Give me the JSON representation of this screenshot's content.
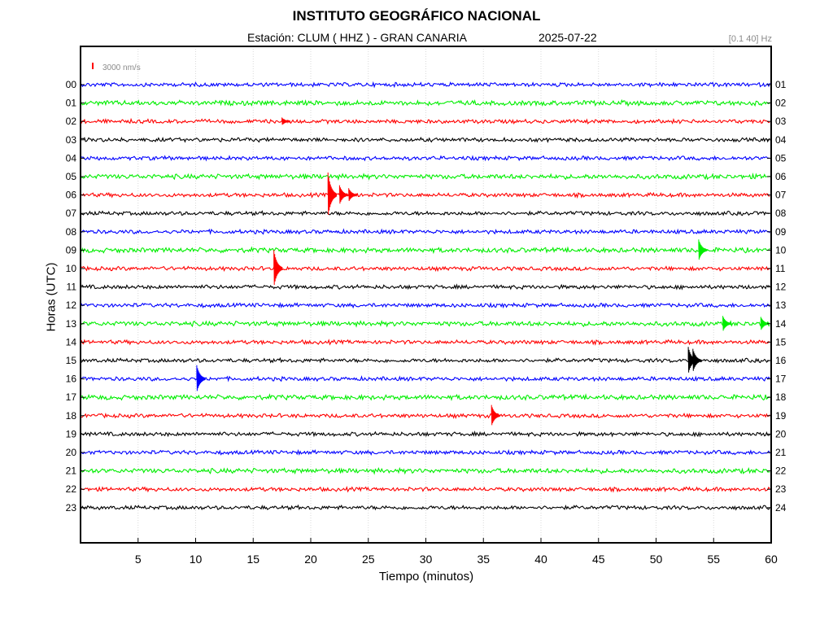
{
  "header": {
    "title": "INSTITUTO GEOGRÁFICO NACIONAL",
    "station": "Estación:  CLUM ( HHZ ) - GRAN CANARIA",
    "date": "2025-07-22",
    "filter": "[0.1 40] Hz"
  },
  "chart_data": {
    "type": "line",
    "title": "INSTITUTO GEOGRÁFICO NACIONAL",
    "xlabel": "Tiempo (minutos)",
    "ylabel": "Horas (UTC)",
    "xlim": [
      0,
      60
    ],
    "x_ticks": [
      "5",
      "10",
      "15",
      "20",
      "25",
      "30",
      "35",
      "40",
      "45",
      "50",
      "55",
      "60"
    ],
    "y_ticks_left": [
      "00",
      "01",
      "02",
      "03",
      "04",
      "05",
      "06",
      "07",
      "08",
      "09",
      "10",
      "11",
      "12",
      "13",
      "14",
      "15",
      "16",
      "17",
      "18",
      "19",
      "20",
      "21",
      "22",
      "23"
    ],
    "y_ticks_right": [
      "01",
      "02",
      "03",
      "04",
      "05",
      "06",
      "07",
      "08",
      "09",
      "10",
      "11",
      "12",
      "13",
      "14",
      "15",
      "16",
      "17",
      "18",
      "19",
      "20",
      "21",
      "22",
      "23",
      "24"
    ],
    "scale_label": "3000 nm/s",
    "grid": true,
    "trace_colors": [
      "#0000ff",
      "#00ee00",
      "#ff0000",
      "#000000"
    ],
    "events": [
      {
        "hour": 2,
        "minute": 17.5,
        "amplitude": 0.4
      },
      {
        "hour": 6,
        "minute": 21.5,
        "amplitude": 2.3
      },
      {
        "hour": 6,
        "minute": 22.5,
        "amplitude": 1.0
      },
      {
        "hour": 6,
        "minute": 23.3,
        "amplitude": 0.7
      },
      {
        "hour": 9,
        "minute": 53.7,
        "amplitude": 1.1
      },
      {
        "hour": 10,
        "minute": 16.8,
        "amplitude": 1.9
      },
      {
        "hour": 13,
        "minute": 55.8,
        "amplitude": 0.8
      },
      {
        "hour": 13,
        "minute": 59.1,
        "amplitude": 0.7
      },
      {
        "hour": 15,
        "minute": 52.8,
        "amplitude": 1.4
      },
      {
        "hour": 15,
        "minute": 53.2,
        "amplitude": 1.2
      },
      {
        "hour": 16,
        "minute": 10.1,
        "amplitude": 1.4
      },
      {
        "hour": 18,
        "minute": 35.7,
        "amplitude": 1.1
      }
    ]
  }
}
